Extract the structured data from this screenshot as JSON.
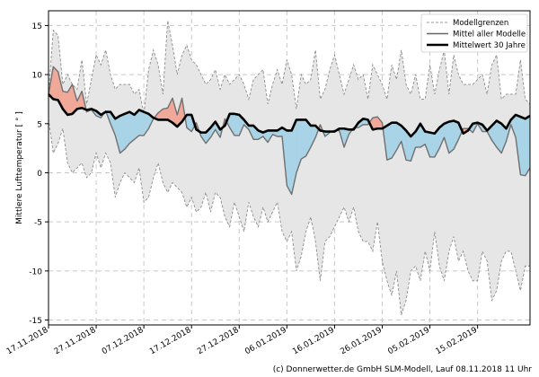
{
  "chart_data": {
    "type": "line",
    "ylabel": "Mittlere Lufttemperatur [ ° ]",
    "ylim": [
      -15.5,
      16.5
    ],
    "yticks": [
      15,
      10,
      5,
      0,
      -5,
      -10,
      -15
    ],
    "x_start_day": 0,
    "x_end_day": 101,
    "xticks": [
      {
        "day": 0,
        "label": "17.11.2018"
      },
      {
        "day": 10,
        "label": "27.11.2018"
      },
      {
        "day": 20,
        "label": "07.12.2018"
      },
      {
        "day": 30,
        "label": "17.12.2018"
      },
      {
        "day": 40,
        "label": "27.12.2018"
      },
      {
        "day": 50,
        "label": "06.01.2019"
      },
      {
        "day": 60,
        "label": "16.01.2019"
      },
      {
        "day": 70,
        "label": "26.01.2019"
      },
      {
        "day": 80,
        "label": "05.02.2019"
      },
      {
        "day": 90,
        "label": "15.02.2019"
      }
    ],
    "legend": [
      {
        "label": "Modellgrenzen",
        "style": "dashed",
        "color": "#999999"
      },
      {
        "label": "Mittel aller Modelle",
        "style": "solid",
        "color": "#666666"
      },
      {
        "label": "Mittelwert 30 Jahre",
        "style": "solid-bold",
        "color": "#000000"
      }
    ],
    "colors": {
      "band": "#e6e6e6",
      "band_edge": "#8c8c8c",
      "warm": "#f0a898",
      "cold": "#a9d3e6",
      "model_mean": "#707070",
      "climate": "#000000"
    },
    "days": [
      0,
      1,
      2,
      3,
      4,
      5,
      6,
      7,
      8,
      9,
      10,
      11,
      12,
      13,
      14,
      15,
      16,
      17,
      18,
      19,
      20,
      21,
      22,
      23,
      24,
      25,
      26,
      27,
      28,
      29,
      30,
      31,
      32,
      33,
      34,
      35,
      36,
      37,
      38,
      39,
      40,
      41,
      42,
      43,
      44,
      45,
      46,
      47,
      48,
      49,
      50,
      51,
      52,
      53,
      54,
      55,
      56,
      57,
      58,
      59,
      60,
      61,
      62,
      63,
      64,
      65,
      66,
      67,
      68,
      69,
      70,
      71,
      72,
      73,
      74,
      75,
      76,
      77,
      78,
      79,
      80,
      81,
      82,
      83,
      84,
      85,
      86,
      87,
      88,
      89,
      90,
      91,
      92,
      93,
      94,
      95,
      96,
      97,
      98,
      99,
      100,
      101
    ],
    "series": [
      {
        "name": "Modellgrenzen (max)",
        "values": [
          8,
          14.5,
          14,
          9,
          10,
          9,
          8.5,
          11.5,
          7,
          9.5,
          12,
          11,
          12.5,
          10,
          8.5,
          9,
          9,
          9,
          8,
          8.5,
          6,
          10.5,
          12.5,
          11,
          8,
          15.5,
          13,
          10,
          12,
          13,
          11.5,
          11,
          10,
          9,
          9.5,
          10.5,
          8.5,
          10,
          9,
          9.5,
          10,
          9,
          7.5,
          9.5,
          10,
          10.5,
          7,
          9,
          10.5,
          9,
          11.5,
          10,
          6.5,
          10,
          9,
          9.5,
          12.5,
          7.5,
          8.5,
          10.5,
          12,
          10,
          8,
          9.5,
          11,
          9.5,
          10,
          7.5,
          11,
          10,
          9,
          7.5,
          11,
          9.5,
          12.5,
          9,
          8,
          10,
          7.5,
          7.5,
          11,
          8,
          10.5,
          12.5,
          8,
          12,
          10,
          9,
          9,
          9,
          9.5,
          10,
          8,
          11,
          12,
          7.5,
          8,
          8,
          8,
          11.5,
          7.5,
          7
        ]
      },
      {
        "name": "Modellgrenzen (min)",
        "values": [
          5.5,
          2,
          3,
          4.5,
          1,
          0,
          0.5,
          1,
          -0.5,
          0,
          2,
          0.5,
          2,
          1,
          -2.5,
          -1,
          0,
          -0.5,
          -1,
          0.5,
          -3,
          -2.5,
          -0.5,
          1,
          -1,
          -2,
          -1,
          -1.5,
          -2,
          -3.5,
          -2.5,
          -4,
          -3.5,
          -2,
          -4,
          -2,
          -2.5,
          -4.5,
          -5.5,
          -3,
          -4.5,
          -6,
          -3,
          -4.5,
          -5.5,
          -3.5,
          -5,
          -4,
          -3,
          -6,
          -7,
          -6,
          -10,
          -8.5,
          -6,
          -4.5,
          -7,
          -11,
          -7,
          -6.5,
          -5.5,
          -4.5,
          -3.5,
          -5,
          -3.5,
          -6,
          -7,
          -7,
          -8,
          -5,
          -9,
          -11,
          -12.5,
          -10,
          -14.5,
          -13,
          -10,
          -9.5,
          -11,
          -8,
          -10,
          -6,
          -9.5,
          -11,
          -8,
          -6.5,
          -9,
          -8,
          -10,
          -11,
          -11,
          -8,
          -9,
          -13,
          -12,
          -9,
          -8,
          -8,
          -10,
          -12,
          -9.5,
          -9.5
        ]
      },
      {
        "name": "Mittel aller Modelle",
        "values": [
          8,
          10.8,
          10.3,
          8.3,
          8.2,
          9,
          7.3,
          8.3,
          6.2,
          6.4,
          5.8,
          5.6,
          6.3,
          5,
          3.8,
          2,
          2.4,
          3,
          3.4,
          3.8,
          3.8,
          4.5,
          5.5,
          6.1,
          6.5,
          6.6,
          7.6,
          5.9,
          7.6,
          4.6,
          4.2,
          5.1,
          3.7,
          3,
          3.6,
          4.4,
          3.6,
          5.5,
          4.6,
          3.8,
          3.8,
          4.9,
          4.4,
          3.4,
          3.4,
          3.7,
          3.1,
          3.9,
          3.7,
          3.7,
          -1.3,
          -2.2,
          0,
          1.4,
          1.7,
          2.6,
          3.6,
          4.9,
          3.7,
          4.1,
          4.3,
          4.3,
          2.6,
          3.9,
          4.6,
          4.6,
          4.9,
          4.9,
          5.6,
          5.7,
          5.1,
          1.3,
          1.5,
          2.3,
          3.2,
          1.3,
          1.2,
          2.6,
          2.6,
          2.9,
          1.6,
          1.6,
          2.5,
          3.6,
          2,
          2.4,
          3.4,
          4.5,
          4.5,
          4.1,
          5,
          4.2,
          4.2,
          3.3,
          2.6,
          2,
          3.2,
          4.9,
          3.6,
          -0.2,
          -0.3,
          0.5
        ]
      },
      {
        "name": "Mittelwert 30 Jahre",
        "values": [
          8,
          7.5,
          7.4,
          6.5,
          5.9,
          6,
          6.5,
          6.6,
          6.4,
          6.5,
          6.3,
          5.9,
          6.2,
          6.2,
          5.5,
          5.8,
          6,
          6.2,
          5.9,
          6.4,
          6.2,
          6,
          5.6,
          5.4,
          5.4,
          5.4,
          5.1,
          4.7,
          5.2,
          5.9,
          5.9,
          4.4,
          4.1,
          4.1,
          4.6,
          5.2,
          4.4,
          4.8,
          6,
          6,
          5.9,
          5.4,
          4.8,
          4.8,
          4.3,
          4.1,
          4.3,
          4.3,
          4.3,
          4.6,
          4.3,
          4.3,
          5.4,
          5.4,
          5.4,
          4.8,
          4.8,
          4.3,
          4.2,
          4.2,
          4.2,
          4.5,
          4.5,
          4.4,
          4.4,
          5.1,
          5.5,
          5.4,
          4.4,
          4.5,
          4.5,
          4.8,
          5.1,
          5.1,
          4.8,
          4.3,
          3.7,
          4.2,
          5,
          4.2,
          4.1,
          4,
          4.6,
          5,
          5.2,
          5.3,
          5.1,
          4,
          4.3,
          5,
          5.1,
          4.9,
          4.3,
          4.8,
          5.3,
          5,
          4.5,
          5.4,
          5.9,
          5.7,
          5.5,
          5.8
        ]
      }
    ]
  },
  "footer": {
    "credit": "(c) Donnerwetter.de GmbH SLM-Modell, Lauf 08.11.2018 11 Uhr"
  }
}
